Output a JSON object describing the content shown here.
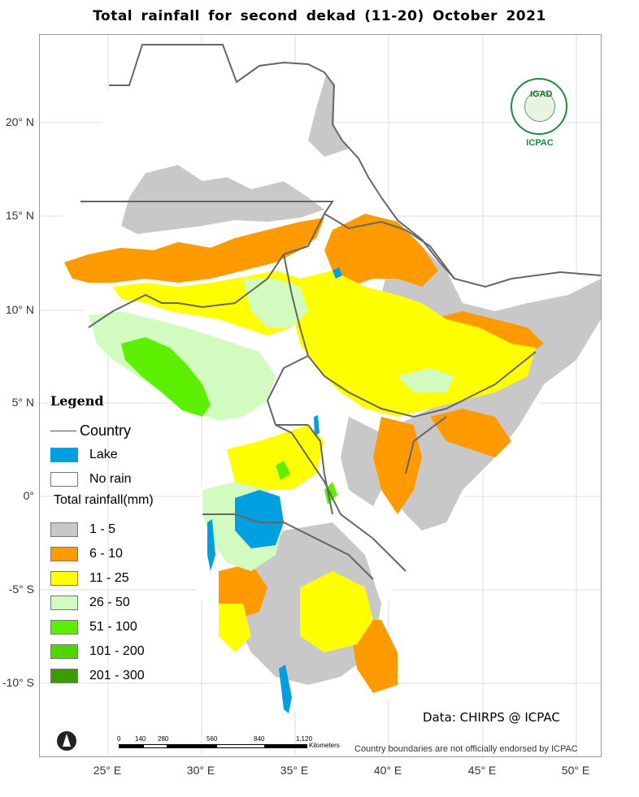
{
  "title": "Total rainfall  for  second  dekad (11-20)  October  2021",
  "latitudes": [
    "20° N",
    "15° N",
    "10° N",
    "5° N",
    "0°",
    "-5° S",
    "-10° S"
  ],
  "longitudes": [
    "25° E",
    "30° E",
    "35° E",
    "40° E",
    "45° E",
    "50° E"
  ],
  "legend": {
    "title": "Legend",
    "country": "Country",
    "lake": "Lake",
    "no_rain": "No rain",
    "rainfall_title": "Total rainfall(mm)",
    "classes": [
      {
        "label": "1 - 5",
        "color": "#c8c8c8"
      },
      {
        "label": "6 - 10",
        "color": "#ff9a00"
      },
      {
        "label": "11 - 25",
        "color": "#ffff00"
      },
      {
        "label": "26 - 50",
        "color": "#d2fcbf"
      },
      {
        "label": "51 - 100",
        "color": "#5cf000"
      },
      {
        "label": "101 - 200",
        "color": "#4ed600"
      },
      {
        "label": "201 - 300",
        "color": "#3a9e00"
      }
    ],
    "lake_color": "#00a0e0"
  },
  "logo": {
    "text": "IGAD",
    "caption": "ICPAC"
  },
  "credit": "Data: CHIRPS @ ICPAC",
  "disclaimer": "Country boundaries are not officially endorsed by ICPAC",
  "scale": {
    "ticks": [
      "0",
      "140",
      "280",
      "560",
      "840",
      "1,120"
    ],
    "unit": "Kilometers"
  }
}
